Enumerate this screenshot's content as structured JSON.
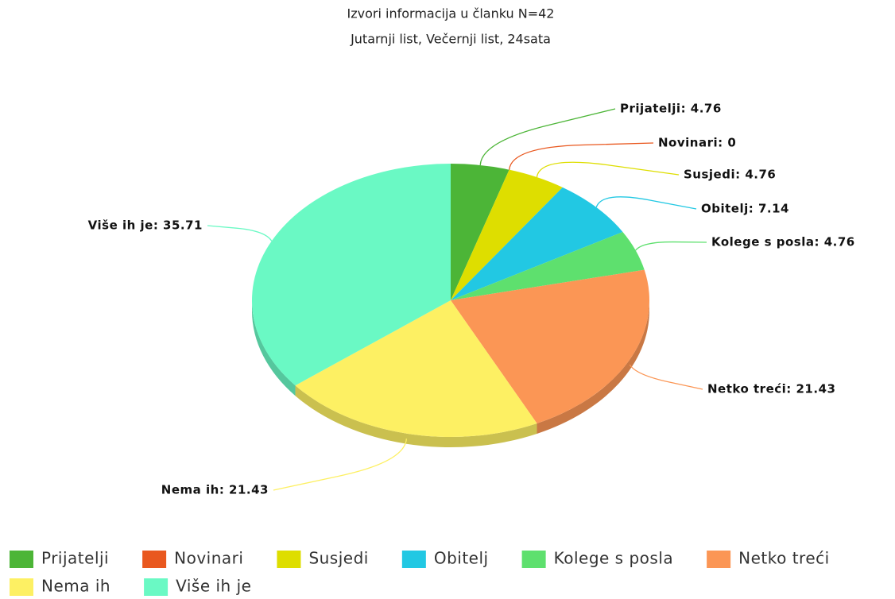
{
  "chart_data": {
    "type": "pie3d",
    "title": "Izvori informacija u članku N=42",
    "subtitle": "Jutarnji list, Večernji list, 24sata",
    "categories": [
      "Prijatelji",
      "Novinari",
      "Susjedi",
      "Obitelj",
      "Kolege s posla",
      "Netko treći",
      "Nema ih",
      "Više ih je"
    ],
    "values": [
      4.76,
      0,
      4.76,
      7.14,
      4.76,
      21.43,
      21.43,
      35.71
    ],
    "value_labels": [
      "Prijatelji: 4.76",
      "Novinari: 0",
      "Susjedi: 4.76",
      "Obitelj: 7.14",
      "Kolege s posla: 4.76",
      "Netko treći: 21.43",
      "Nema ih: 21.43",
      "Više ih je: 35.71"
    ],
    "colors": [
      "#4cb537",
      "#e9581f",
      "#dede00",
      "#22c8e3",
      "#5ee06e",
      "#fb9655",
      "#fdf063",
      "#6af9c4"
    ],
    "legend": "bottom"
  }
}
